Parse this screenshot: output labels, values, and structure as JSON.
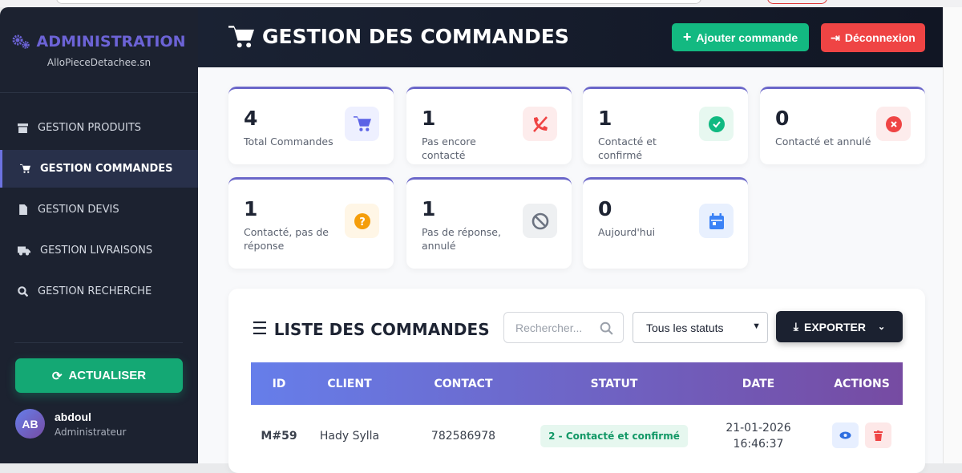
{
  "sidebar": {
    "title": "ADMINISTRATION",
    "subtitle": "AlloPieceDetachee.sn",
    "items": [
      {
        "label": "GESTION PRODUITS",
        "icon": "box-icon"
      },
      {
        "label": "GESTION COMMANDES",
        "icon": "cart-icon",
        "active": true
      },
      {
        "label": "GESTION DEVIS",
        "icon": "file-icon"
      },
      {
        "label": "GESTION LIVRAISONS",
        "icon": "truck-icon"
      },
      {
        "label": "GESTION RECHERCHE",
        "icon": "search-icon"
      }
    ],
    "refresh_label": "ACTUALISER",
    "user": {
      "initials": "AB",
      "name": "abdoul",
      "role": "Administrateur"
    }
  },
  "header": {
    "title": "GESTION DES COMMANDES",
    "add_label": "Ajouter commande",
    "logout_label": "Déconnexion"
  },
  "stats": [
    {
      "value": "4",
      "label": "Total Commandes",
      "icon": "cart-icon",
      "color": "#5b62e6"
    },
    {
      "value": "1",
      "label": "Pas encore contacté",
      "icon": "phone-slash-icon",
      "color": "#ef4444"
    },
    {
      "value": "1",
      "label": "Contacté et confirmé",
      "icon": "check-circle-icon",
      "color": "#10b981"
    },
    {
      "value": "0",
      "label": "Contacté et annulé",
      "icon": "x-circle-icon",
      "color": "#ef4444"
    },
    {
      "value": "1",
      "label": "Contacté, pas de réponse",
      "icon": "question-circle-icon",
      "color": "#f59e0b"
    },
    {
      "value": "1",
      "label": "Pas de réponse, annulé",
      "icon": "ban-icon",
      "color": "#6b7280"
    },
    {
      "value": "0",
      "label": "Aujourd'hui",
      "icon": "calendar-icon",
      "color": "#3b82f6"
    }
  ],
  "list": {
    "title": "LISTE DES COMMANDES",
    "search_placeholder": "Rechercher...",
    "status_filter": "Tous les statuts",
    "export_label": "EXPORTER",
    "columns": [
      "ID",
      "CLIENT",
      "CONTACT",
      "STATUT",
      "DATE",
      "ACTIONS"
    ],
    "rows": [
      {
        "id": "M#59",
        "client": "Hady Sylla",
        "contact": "782586978",
        "status": "2 - Contacté et confirmé",
        "date": "21-01-2026",
        "time": "16:46:37"
      }
    ]
  }
}
